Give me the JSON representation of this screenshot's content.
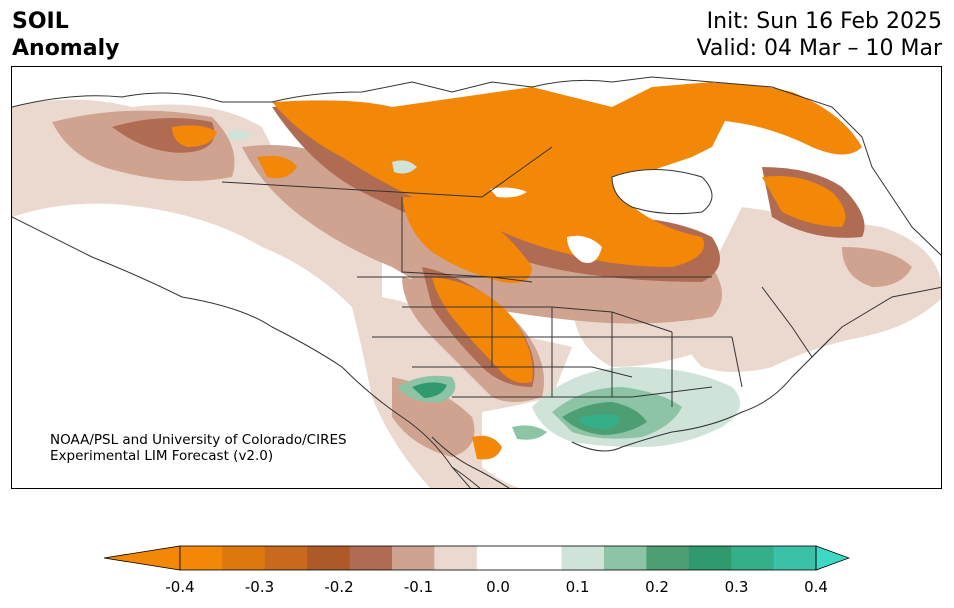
{
  "title": {
    "line1": "SOIL",
    "line2": "Anomaly"
  },
  "dates": {
    "init": "Init: Sun 16 Feb 2025",
    "valid": "Valid: 04 Mar – 10 Mar"
  },
  "credit": {
    "line1": "NOAA/PSL and University of Colorado/CIRES",
    "line2": "Experimental LIM Forecast (v2.0)"
  },
  "colorbar": {
    "ticks": [
      "-0.4",
      "-0.3",
      "-0.2",
      "-0.1",
      "0.0",
      "0.1",
      "0.2",
      "0.3",
      "0.4"
    ],
    "under_color": "#f28708",
    "over_color": "#3dd9c4",
    "colors": [
      "#f28708",
      "#dc780e",
      "#c86a1e",
      "#ad5a28",
      "#b06c52",
      "#cfa390",
      "#ebd9d0",
      "#ffffff",
      "#ffffff",
      "#cfe3d9",
      "#8ec4a6",
      "#4d9e72",
      "#2e9a6e",
      "#35ae8a",
      "#3bc1a7"
    ]
  }
}
